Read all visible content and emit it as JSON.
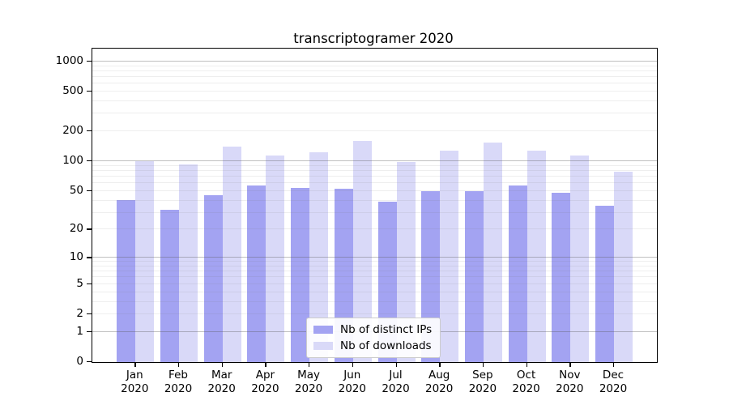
{
  "chart_data": {
    "type": "bar",
    "title": "transcriptogramer 2020",
    "categories": [
      "Jan 2020",
      "Feb 2020",
      "Mar 2020",
      "Apr 2020",
      "May 2020",
      "Jun 2020",
      "Jul 2020",
      "Aug 2020",
      "Sep 2020",
      "Oct 2020",
      "Nov 2020",
      "Dec 2020"
    ],
    "month_labels": [
      {
        "month": "Jan",
        "year": "2020"
      },
      {
        "month": "Feb",
        "year": "2020"
      },
      {
        "month": "Mar",
        "year": "2020"
      },
      {
        "month": "Apr",
        "year": "2020"
      },
      {
        "month": "May",
        "year": "2020"
      },
      {
        "month": "Jun",
        "year": "2020"
      },
      {
        "month": "Jul",
        "year": "2020"
      },
      {
        "month": "Aug",
        "year": "2020"
      },
      {
        "month": "Sep",
        "year": "2020"
      },
      {
        "month": "Oct",
        "year": "2020"
      },
      {
        "month": "Nov",
        "year": "2020"
      },
      {
        "month": "Dec",
        "year": "2020"
      }
    ],
    "series": [
      {
        "name": "Nb of distinct IPs",
        "color": "#a3a3f2",
        "values": [
          40,
          32,
          45,
          57,
          54,
          53,
          39,
          50,
          50,
          57,
          48,
          35
        ]
      },
      {
        "name": "Nb of downloads",
        "color": "#d9d9f8",
        "values": [
          100,
          92,
          140,
          115,
          122,
          160,
          98,
          128,
          155,
          128,
          114,
          78
        ]
      }
    ],
    "y_axis": {
      "scale": "log10(value+1)",
      "tick_values": [
        0,
        1,
        2,
        5,
        10,
        20,
        50,
        100,
        200,
        500,
        1000
      ],
      "tick_labels": [
        "0",
        "1",
        "2",
        "5",
        "10",
        "20",
        "50",
        "100",
        "200",
        "500",
        "1000"
      ],
      "major_grid_values": [
        1,
        10,
        100,
        1000
      ],
      "minor_grid_values": [
        2,
        3,
        4,
        5,
        6,
        7,
        8,
        9,
        20,
        30,
        40,
        50,
        60,
        70,
        80,
        90,
        200,
        300,
        400,
        500,
        600,
        700,
        800,
        900
      ]
    },
    "xlabel": "",
    "ylabel": "",
    "legend_position": "bottom-center",
    "grid": "horizontal log gridlines, drawn over bars"
  }
}
